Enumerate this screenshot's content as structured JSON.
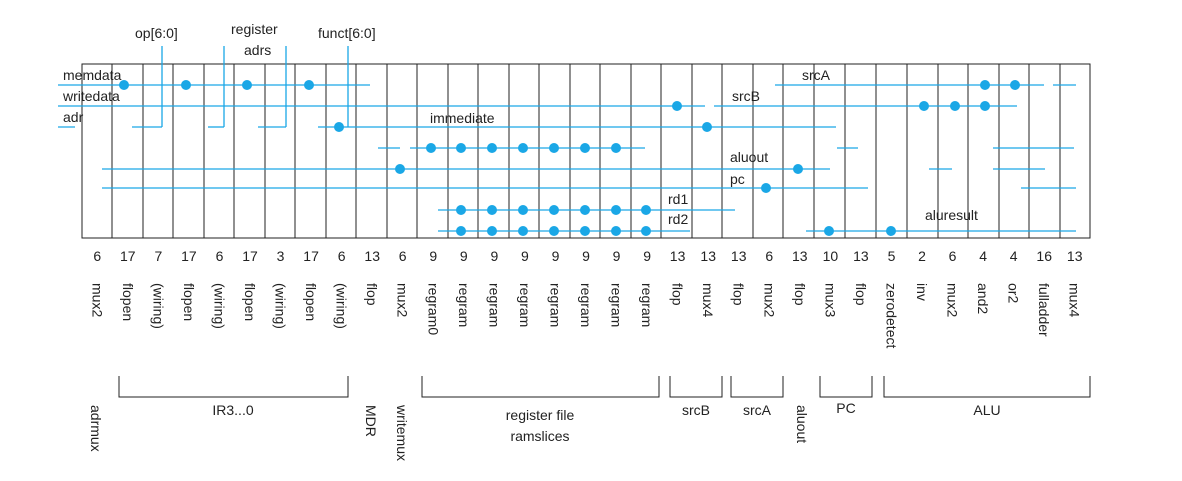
{
  "colors": {
    "wire": "#1aa7e6",
    "line": "#222222",
    "background": "#ffffff"
  },
  "diagram": {
    "columns": [
      {
        "bits": "6",
        "cell": "mux2"
      },
      {
        "bits": "17",
        "cell": "flopen"
      },
      {
        "bits": "7",
        "cell": "(wiring)"
      },
      {
        "bits": "17",
        "cell": "flopen"
      },
      {
        "bits": "6",
        "cell": "(wiring)"
      },
      {
        "bits": "17",
        "cell": "flopen"
      },
      {
        "bits": "3",
        "cell": "(wiring)"
      },
      {
        "bits": "17",
        "cell": "flopen"
      },
      {
        "bits": "6",
        "cell": "(wiring)"
      },
      {
        "bits": "13",
        "cell": "flop"
      },
      {
        "bits": "6",
        "cell": "mux2"
      },
      {
        "bits": "9",
        "cell": "regram0"
      },
      {
        "bits": "9",
        "cell": "regram"
      },
      {
        "bits": "9",
        "cell": "regram"
      },
      {
        "bits": "9",
        "cell": "regram"
      },
      {
        "bits": "9",
        "cell": "regram"
      },
      {
        "bits": "9",
        "cell": "regram"
      },
      {
        "bits": "9",
        "cell": "regram"
      },
      {
        "bits": "9",
        "cell": "regram"
      },
      {
        "bits": "13",
        "cell": "flop"
      },
      {
        "bits": "13",
        "cell": "mux4"
      },
      {
        "bits": "13",
        "cell": "flop"
      },
      {
        "bits": "6",
        "cell": "mux2"
      },
      {
        "bits": "13",
        "cell": "flop"
      },
      {
        "bits": "10",
        "cell": "mux3"
      },
      {
        "bits": "13",
        "cell": "flop"
      },
      {
        "bits": "5",
        "cell": "zerodetect"
      },
      {
        "bits": "2",
        "cell": "inv"
      },
      {
        "bits": "6",
        "cell": "mux2"
      },
      {
        "bits": "4",
        "cell": "and2"
      },
      {
        "bits": "4",
        "cell": "or2"
      },
      {
        "bits": "16",
        "cell": "fulladder"
      },
      {
        "bits": "13",
        "cell": "mux4"
      }
    ],
    "signals": {
      "memdata": "memdata",
      "writedata": "writedata",
      "adr": "adr",
      "immediate": "immediate",
      "aluout": "aluout",
      "pc": "pc",
      "rd1": "rd1",
      "rd2": "rd2",
      "srcA": "srcA",
      "srcB": "srcB",
      "aluresult": "aluresult"
    },
    "top_labels": {
      "op": "op[6:0]",
      "register_line1": "register",
      "register_line2": "adrs",
      "funct": "funct[6:0]"
    },
    "groups": {
      "adrmux": "adrmux",
      "ir": "IR3...0",
      "mdr": "MDR",
      "writemux": "writemux",
      "regfile_line1": "register file",
      "regfile_line2": "ramslices",
      "srcB": "srcB",
      "srcA": "srcA",
      "aluout": "aluout",
      "pc": "PC",
      "alu": "ALU"
    }
  }
}
